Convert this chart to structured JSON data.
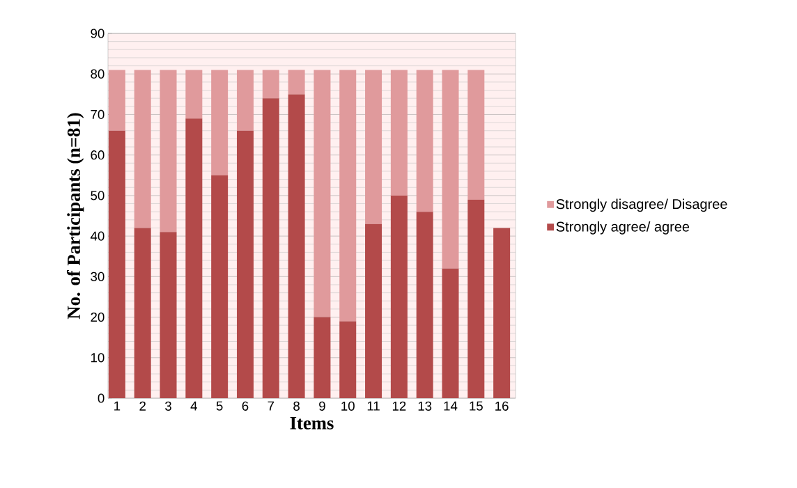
{
  "chart_data": {
    "type": "bar",
    "stacked": true,
    "xlabel": "Items",
    "ylabel": "No. of Participants (n=81)",
    "categories": [
      "1",
      "2",
      "3",
      "4",
      "5",
      "6",
      "7",
      "8",
      "9",
      "10",
      "11",
      "12",
      "13",
      "14",
      "15",
      "16"
    ],
    "series": [
      {
        "name": "Strongly agree/ agree",
        "color": "#b34a4a",
        "values": [
          66,
          42,
          41,
          69,
          55,
          66,
          74,
          75,
          20,
          19,
          43,
          50,
          46,
          32,
          49,
          42
        ]
      },
      {
        "name": "Strongly disagree/ Disagree",
        "color": "#e09a9c",
        "values": [
          15,
          39,
          40,
          12,
          26,
          15,
          7,
          6,
          61,
          62,
          38,
          31,
          35,
          49,
          32,
          null
        ]
      }
    ],
    "ylim": [
      0,
      90
    ],
    "yticks": [
      0,
      10,
      20,
      30,
      40,
      50,
      60,
      70,
      80,
      90
    ],
    "grid": "y",
    "legend": "right"
  }
}
